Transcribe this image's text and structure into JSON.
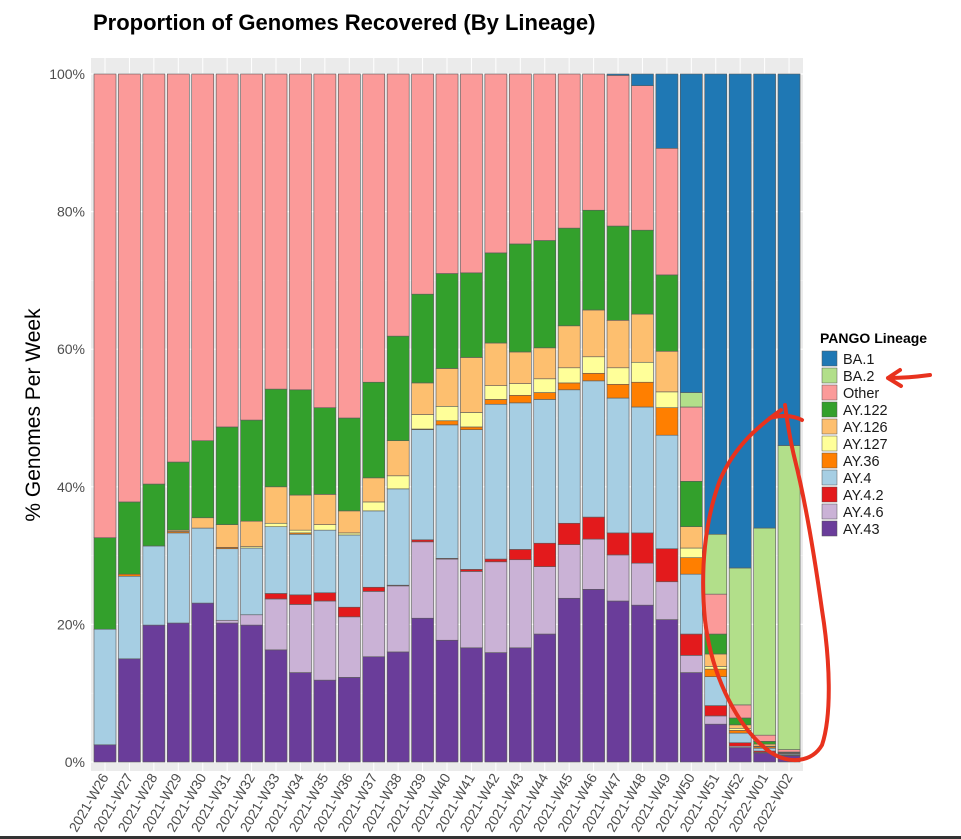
{
  "chart_data": {
    "type": "bar",
    "stacked": true,
    "title": "Proportion of Genomes Recovered (By Lineage)",
    "xlabel": "",
    "ylabel": "% Genomes Per Week",
    "ylim": [
      0,
      100
    ],
    "y_ticks": [
      "0%",
      "20%",
      "40%",
      "60%",
      "80%",
      "100%"
    ],
    "y_tick_values": [
      0,
      20,
      40,
      60,
      80,
      100
    ],
    "grid": true,
    "legend": {
      "title": "PANGO Lineage",
      "position": "right"
    },
    "categories": [
      "2021-W26",
      "2021-W27",
      "2021-W28",
      "2021-W29",
      "2021-W30",
      "2021-W31",
      "2021-W32",
      "2021-W33",
      "2021-W34",
      "2021-W35",
      "2021-W36",
      "2021-W37",
      "2021-W38",
      "2021-W39",
      "2021-W40",
      "2021-W41",
      "2021-W42",
      "2021-W43",
      "2021-W44",
      "2021-W45",
      "2021-W46",
      "2021-W47",
      "2021-W48",
      "2021-W49",
      "2021-W50",
      "2021-W51",
      "2021-W52",
      "2022-W01",
      "2022-W02"
    ],
    "series": [
      {
        "name": "AY.43",
        "color": "#6a3d9a",
        "values": [
          2.5,
          15.0,
          19.9,
          20.2,
          23.1,
          20.2,
          19.9,
          16.3,
          13.0,
          11.9,
          12.3,
          15.3,
          16.0,
          20.9,
          17.7,
          16.6,
          15.9,
          16.6,
          18.6,
          23.8,
          25.1,
          23.4,
          22.8,
          20.7,
          13.0,
          5.5,
          2.1,
          1.3,
          0.9
        ]
      },
      {
        "name": "AY.4.6",
        "color": "#cab2d6",
        "values": [
          0,
          0,
          0,
          0,
          0,
          0.4,
          1.5,
          7.4,
          9.9,
          11.5,
          8.8,
          9.5,
          9.6,
          11.1,
          11.8,
          11.1,
          13.2,
          12.8,
          9.8,
          7.8,
          7.3,
          6.7,
          6.1,
          5.5,
          2.5,
          1.2,
          0.2,
          0.1,
          0.05
        ]
      },
      {
        "name": "AY.4.2",
        "color": "#e31a1c",
        "values": [
          0,
          0,
          0,
          0,
          0,
          0,
          0,
          0.8,
          1.4,
          1.2,
          1.4,
          0.6,
          0.1,
          0.3,
          0.1,
          0.3,
          0.4,
          1.5,
          3.4,
          3.1,
          3.2,
          3.2,
          4.4,
          4.8,
          3.1,
          1.5,
          0.5,
          0.2,
          0.05
        ]
      },
      {
        "name": "AY.4",
        "color": "#a6cee3",
        "values": [
          16.8,
          12.0,
          11.5,
          13.1,
          10.9,
          10.4,
          9.7,
          9.7,
          8.8,
          9.1,
          10.5,
          11.1,
          14.0,
          16.0,
          19.4,
          20.3,
          22.5,
          21.3,
          20.9,
          19.4,
          19.8,
          19.6,
          18.3,
          16.5,
          8.7,
          4.2,
          1.4,
          0.4,
          0.15
        ]
      },
      {
        "name": "AY.36",
        "color": "#ff7f00",
        "values": [
          0,
          0.3,
          0,
          0.2,
          0,
          0.2,
          0,
          0,
          0.2,
          0,
          0,
          0,
          0,
          0.1,
          0.6,
          0.4,
          0.7,
          1.1,
          1.0,
          1.0,
          1.1,
          2.0,
          3.6,
          4.0,
          2.4,
          1.1,
          0.4,
          0.2,
          0.05
        ]
      },
      {
        "name": "AY.127",
        "color": "#ffff99",
        "values": [
          0,
          0,
          0,
          0,
          0,
          0,
          0.2,
          0.5,
          0.4,
          0.8,
          0.3,
          1.3,
          1.9,
          2.1,
          2.1,
          2.1,
          2.0,
          1.7,
          2.0,
          2.2,
          2.4,
          2.4,
          2.9,
          2.3,
          1.4,
          0.4,
          0.3,
          0.1,
          0.05
        ]
      },
      {
        "name": "AY.126",
        "color": "#fdbf6f",
        "values": [
          0,
          0,
          0,
          0.2,
          1.5,
          3.3,
          3.7,
          5.3,
          5.1,
          4.4,
          3.2,
          3.5,
          5.1,
          4.6,
          5.5,
          8.0,
          6.2,
          4.6,
          4.5,
          6.1,
          6.8,
          6.9,
          7.0,
          5.9,
          3.1,
          1.8,
          0.5,
          0.3,
          0.1
        ]
      },
      {
        "name": "AY.122",
        "color": "#33a02c",
        "values": [
          13.3,
          10.5,
          9.0,
          9.9,
          11.2,
          14.2,
          14.7,
          14.2,
          15.3,
          12.6,
          13.5,
          13.9,
          15.2,
          12.9,
          13.8,
          12.3,
          13.1,
          15.7,
          15.6,
          14.2,
          14.5,
          13.7,
          12.2,
          11.1,
          6.6,
          2.9,
          1.0,
          0.4,
          0.1
        ]
      },
      {
        "name": "Other",
        "color": "#fb9a99",
        "values": [
          67.4,
          62.2,
          59.6,
          56.4,
          53.3,
          51.3,
          50.3,
          45.8,
          45.9,
          48.5,
          50.0,
          44.8,
          38.1,
          32.0,
          29.0,
          28.9,
          26.0,
          24.7,
          24.2,
          22.4,
          19.8,
          21.9,
          21.0,
          18.4,
          10.8,
          5.8,
          1.9,
          0.9,
          0.35
        ]
      },
      {
        "name": "BA.2",
        "color": "#b2df8a",
        "values": [
          0,
          0,
          0,
          0,
          0,
          0,
          0,
          0,
          0,
          0,
          0,
          0,
          0,
          0,
          0,
          0,
          0,
          0,
          0,
          0,
          0,
          0,
          0,
          0,
          2.1,
          8.7,
          19.9,
          30.1,
          44.2
        ]
      },
      {
        "name": "BA.1",
        "color": "#1f78b4",
        "values": [
          0,
          0,
          0,
          0,
          0,
          0,
          0,
          0,
          0,
          0,
          0,
          0,
          0,
          0,
          0,
          0,
          0,
          0,
          0,
          0,
          0,
          0.2,
          1.7,
          10.8,
          46.3,
          66.9,
          71.8,
          66.0,
          54.0
        ]
      }
    ],
    "legend_order": [
      "BA.1",
      "BA.2",
      "Other",
      "AY.122",
      "AY.126",
      "AY.127",
      "AY.36",
      "AY.4",
      "AY.4.2",
      "AY.4.6",
      "AY.43"
    ],
    "annotation_color": "#e8321e"
  }
}
